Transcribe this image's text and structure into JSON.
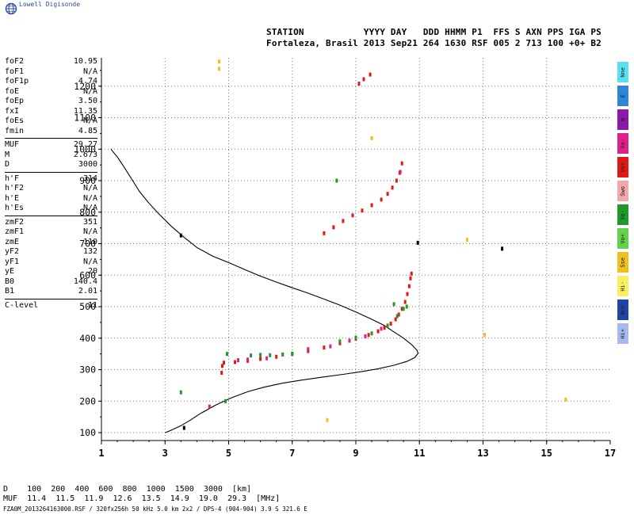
{
  "logo": {
    "text": "Lowell Digisonde"
  },
  "header": {
    "line1": "STATION           YYYY DAY   DDD HHMM P1  FFS S AXN PPS IGA PS",
    "line2": "Fortaleza, Brasil 2013 Sep21 264 1630 RSF 005 2 713 100 +0+ B2"
  },
  "params": {
    "group1": [
      {
        "name": "foF2",
        "value": "10.95"
      },
      {
        "name": "foF1",
        "value": "N/A"
      },
      {
        "name": "foF1p",
        "value": "4.74"
      },
      {
        "name": "foE",
        "value": "N/A"
      },
      {
        "name": "foEp",
        "value": "3.50"
      },
      {
        "name": "fxI",
        "value": "11.35"
      },
      {
        "name": "foEs",
        "value": "N/A"
      },
      {
        "name": "fmin",
        "value": "4.85"
      }
    ],
    "group2": [
      {
        "name": "MUF",
        "value": "29.27"
      },
      {
        "name": "M",
        "value": "2.673"
      },
      {
        "name": "D",
        "value": "3000"
      }
    ],
    "group3": [
      {
        "name": "h'F",
        "value": "314"
      },
      {
        "name": "h'F2",
        "value": "N/A"
      },
      {
        "name": "h'E",
        "value": "N/A"
      },
      {
        "name": "h'Es",
        "value": "N/A"
      }
    ],
    "group4": [
      {
        "name": "zmF2",
        "value": "351"
      },
      {
        "name": "zmF1",
        "value": "N/A"
      },
      {
        "name": "zmE",
        "value": "110"
      },
      {
        "name": "yF2",
        "value": "132"
      },
      {
        "name": "yF1",
        "value": "N/A"
      },
      {
        "name": "yE",
        "value": "20"
      },
      {
        "name": "B0",
        "value": "140.4"
      },
      {
        "name": "B1",
        "value": "2.01"
      }
    ],
    "group5": [
      {
        "name": "C-level",
        "value": "11"
      }
    ]
  },
  "legend": [
    {
      "label": "Nne",
      "color": "#56e0f0"
    },
    {
      "label": "E",
      "color": "#2f86d8"
    },
    {
      "label": "W",
      "color": "#8a1aa8"
    },
    {
      "label": "Vo-",
      "color": "#e0208a"
    },
    {
      "label": "Vo+",
      "color": "#e01818"
    },
    {
      "label": "Swo",
      "color": "#f0a8a8"
    },
    {
      "label": "Vo-",
      "color": "#1f9a2a"
    },
    {
      "label": "Vo+",
      "color": "#62d24a"
    },
    {
      "label": "Sse",
      "color": "#f0c020"
    },
    {
      "label": "Hi-",
      "color": "#f8f060"
    },
    {
      "label": "Nno",
      "color": "#1f44a8"
    },
    {
      "label": "Hi+",
      "color": "#a8b8f0"
    }
  ],
  "chart_data": {
    "type": "scatter",
    "title": "",
    "xlabel": "",
    "ylabel": "",
    "xlim": [
      1,
      17
    ],
    "ylim": [
      75,
      1290
    ],
    "xticks": [
      "1",
      "3",
      "5",
      "7",
      "9",
      "11",
      "13",
      "15",
      "17"
    ],
    "yticks": [
      "100",
      "200",
      "300",
      "400",
      "500",
      "600",
      "700",
      "800",
      "900",
      "1000",
      "1100",
      "1200"
    ],
    "grid": true,
    "series": [
      {
        "color": "#e01818",
        "points": [
          [
            4.78,
            290
          ],
          [
            4.8,
            312
          ],
          [
            4.85,
            322
          ],
          [
            5.2,
            324
          ],
          [
            5.6,
            328
          ],
          [
            6.0,
            334
          ],
          [
            6.5,
            341
          ],
          [
            7.0,
            350
          ],
          [
            7.5,
            359
          ],
          [
            8.0,
            370
          ],
          [
            8.5,
            384
          ],
          [
            9.0,
            398
          ],
          [
            9.4,
            410
          ],
          [
            9.7,
            422
          ],
          [
            9.9,
            433
          ],
          [
            10.1,
            446
          ],
          [
            10.25,
            460
          ],
          [
            10.35,
            475
          ],
          [
            10.45,
            493
          ],
          [
            10.55,
            515
          ],
          [
            10.62,
            540
          ],
          [
            10.68,
            565
          ],
          [
            10.72,
            590
          ],
          [
            10.75,
            605
          ],
          [
            8.0,
            733
          ],
          [
            8.3,
            752
          ],
          [
            8.6,
            772
          ],
          [
            8.9,
            790
          ],
          [
            9.2,
            805
          ],
          [
            9.5,
            822
          ],
          [
            9.8,
            840
          ],
          [
            10.0,
            858
          ],
          [
            10.15,
            878
          ],
          [
            10.28,
            900
          ],
          [
            10.38,
            925
          ],
          [
            10.45,
            955
          ],
          [
            9.1,
            1208
          ],
          [
            9.25,
            1222
          ],
          [
            9.45,
            1237
          ]
        ]
      },
      {
        "color": "#1f9a2a",
        "points": [
          [
            5.7,
            345
          ],
          [
            6.0,
            347
          ],
          [
            6.3,
            346
          ],
          [
            6.7,
            348
          ],
          [
            7.0,
            351
          ],
          [
            8.5,
            390
          ],
          [
            9.0,
            402
          ],
          [
            9.5,
            415
          ],
          [
            10.0,
            440
          ],
          [
            10.3,
            470
          ],
          [
            10.5,
            493
          ],
          [
            10.6,
            500
          ],
          [
            10.2,
            508
          ],
          [
            4.95,
            350
          ],
          [
            8.4,
            900
          ],
          [
            3.5,
            228
          ],
          [
            4.9,
            200
          ]
        ]
      },
      {
        "color": "#e0208a",
        "points": [
          [
            5.3,
            330
          ],
          [
            5.6,
            332
          ],
          [
            6.2,
            336
          ],
          [
            7.5,
            365
          ],
          [
            8.2,
            374
          ],
          [
            8.8,
            392
          ],
          [
            9.3,
            406
          ],
          [
            9.8,
            430
          ],
          [
            4.4,
            183
          ],
          [
            10.4,
            928
          ]
        ]
      },
      {
        "color": "#f0c020",
        "points": [
          [
            4.7,
            1255
          ],
          [
            4.7,
            1278
          ],
          [
            12.5,
            712
          ],
          [
            13.05,
            410
          ],
          [
            9.5,
            1035
          ],
          [
            15.6,
            205
          ],
          [
            8.1,
            140
          ]
        ]
      },
      {
        "color": "#000000",
        "points": [
          [
            3.6,
            115
          ],
          [
            3.5,
            726
          ],
          [
            10.95,
            703
          ],
          [
            13.6,
            684
          ]
        ]
      }
    ],
    "curve": {
      "color": "#000000",
      "points": [
        [
          1.3,
          1000
        ],
        [
          1.5,
          975
        ],
        [
          1.7,
          945
        ],
        [
          1.95,
          905
        ],
        [
          2.2,
          865
        ],
        [
          2.5,
          828
        ],
        [
          2.8,
          795
        ],
        [
          3.2,
          755
        ],
        [
          3.6,
          720
        ],
        [
          4.0,
          688
        ],
        [
          4.5,
          660
        ],
        [
          5.0,
          640
        ],
        [
          5.5,
          618
        ],
        [
          6.0,
          597
        ],
        [
          6.5,
          578
        ],
        [
          7.0,
          560
        ],
        [
          7.5,
          543
        ],
        [
          8.0,
          524
        ],
        [
          8.5,
          505
        ],
        [
          9.0,
          483
        ],
        [
          9.5,
          460
        ],
        [
          9.9,
          440
        ],
        [
          10.2,
          420
        ],
        [
          10.5,
          400
        ],
        [
          10.75,
          380
        ],
        [
          10.92,
          362
        ],
        [
          10.96,
          352
        ],
        [
          10.85,
          338
        ],
        [
          10.6,
          326
        ],
        [
          10.2,
          314
        ],
        [
          9.7,
          303
        ],
        [
          9.2,
          294
        ],
        [
          8.6,
          285
        ],
        [
          8.0,
          277
        ],
        [
          7.3,
          267
        ],
        [
          6.7,
          257
        ],
        [
          6.1,
          244
        ],
        [
          5.6,
          230
        ],
        [
          5.1,
          211
        ],
        [
          4.6,
          188
        ],
        [
          4.1,
          160
        ],
        [
          3.8,
          140
        ],
        [
          3.5,
          122
        ],
        [
          3.2,
          108
        ],
        [
          3.0,
          100
        ]
      ]
    }
  },
  "bottom": {
    "d_row": "D    100  200  400  600  800  1000  1500  3000  [km]",
    "muf_row": "MUF  11.4  11.5  11.9  12.6  13.5  14.9  19.0  29.3  [MHz]"
  },
  "footer": {
    "text": "FZA0M_2013264163000.RSF / 320fx256h 50 kHz 5.0 km 2x2 / DPS-4 (904-904)  3.9 S 321.6 E"
  }
}
